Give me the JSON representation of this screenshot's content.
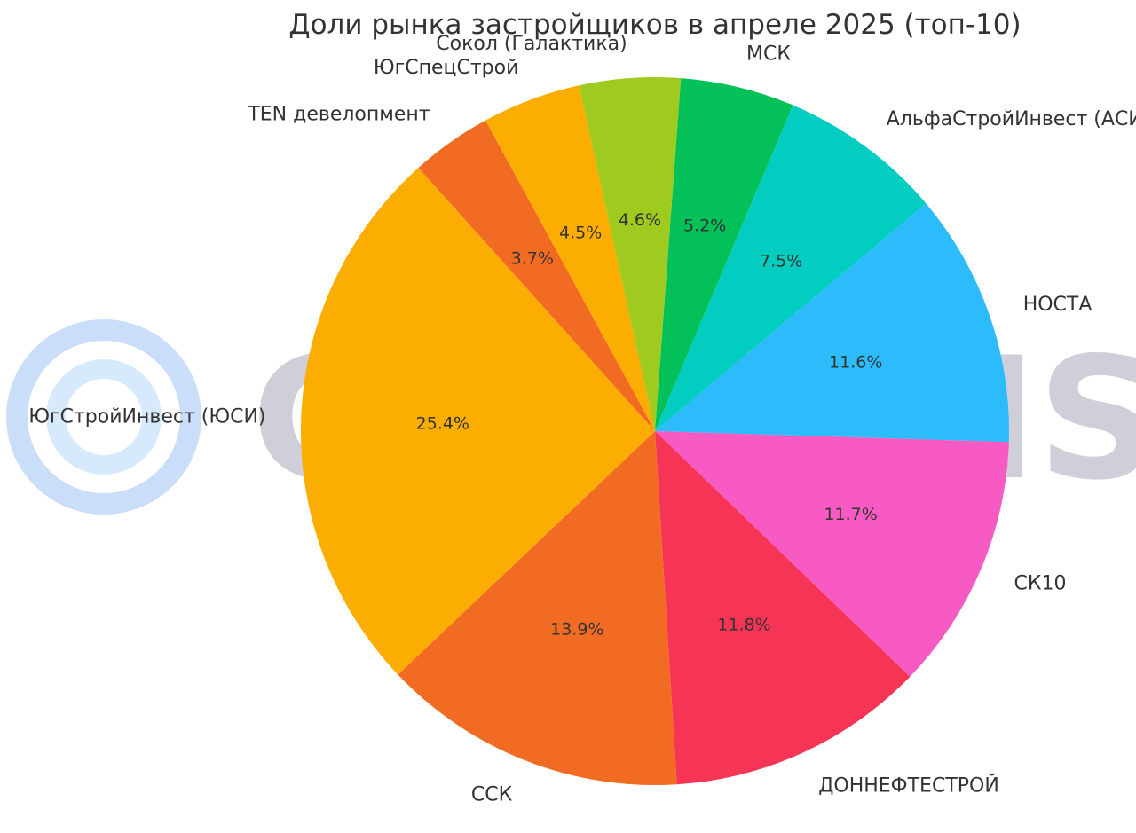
{
  "chart_data": {
    "type": "pie",
    "title": "Доли рынка застройщиков в апреле 2025 (топ-10)",
    "slices": [
      {
        "label": "МСК",
        "value": 5.2,
        "value_label": "5.2%",
        "color": "#03c158"
      },
      {
        "label": "АльфаСтройИнвест (АСИ)",
        "value": 7.5,
        "value_label": "7.5%",
        "color": "#03ccc0"
      },
      {
        "label": "НОСТА",
        "value": 11.6,
        "value_label": "11.6%",
        "color": "#2cbcfc"
      },
      {
        "label": "СК10",
        "value": 11.7,
        "value_label": "11.7%",
        "color": "#f75bc3"
      },
      {
        "label": "ДОННЕФТЕСТРОЙ",
        "value": 11.8,
        "value_label": "11.8%",
        "color": "#f63456"
      },
      {
        "label": "ССК",
        "value": 13.9,
        "value_label": "13.9%",
        "color": "#f26b22"
      },
      {
        "label": "ЮгСтройИнвест (ЮСИ)",
        "value": 25.4,
        "value_label": "25.4%",
        "color": "#fcad02"
      },
      {
        "label": "TEN девелопмент",
        "value": 3.7,
        "value_label": "3.7%",
        "color": "#f26b22"
      },
      {
        "label": "ЮгСпецСтрой",
        "value": 4.5,
        "value_label": "4.5%",
        "color": "#fcad02"
      },
      {
        "label": "Сокол (Галактика)",
        "value": 4.6,
        "value_label": "4.6%",
        "color": "#9fca1f"
      }
    ]
  },
  "watermark": {
    "text": "CONSENSE",
    "logo_outer_color": "#cadefa",
    "logo_inner_color": "#d7e9fc",
    "text_color": "#cfcfd9"
  }
}
